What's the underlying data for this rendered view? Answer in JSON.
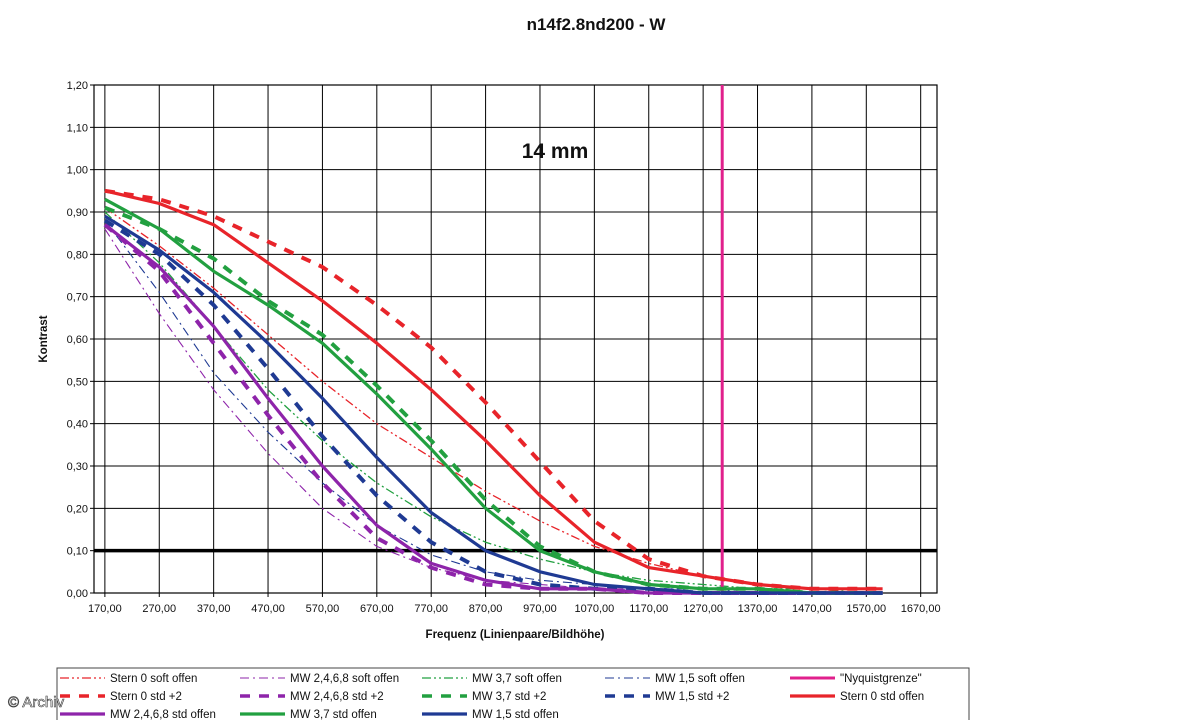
{
  "watermark": "© Archiv",
  "chart_data": {
    "type": "line",
    "title": "n14f2.8nd200 - W",
    "annotation": "14 mm",
    "xlabel": "Frequenz (Linienpaare/Bildhöhe)",
    "ylabel": "Kontrast",
    "xlim": [
      170,
      1700
    ],
    "ylim": [
      0,
      1.2
    ],
    "x_ticks": [
      "170,00",
      "270,00",
      "370,00",
      "470,00",
      "570,00",
      "670,00",
      "770,00",
      "870,00",
      "970,00",
      "1070,00",
      "1170,00",
      "1270,00",
      "1370,00",
      "1470,00",
      "1570,00",
      "1670,00"
    ],
    "y_ticks": [
      "0,00",
      "0,10",
      "0,20",
      "0,30",
      "0,40",
      "0,50",
      "0,60",
      "0,70",
      "0,80",
      "0,90",
      "1,00",
      "1,10",
      "1,20"
    ],
    "grid": true,
    "legend_position": "bottom",
    "reference_lines": [
      {
        "orientation": "horizontal",
        "value": 0.1,
        "color": "#000000"
      },
      {
        "orientation": "vertical",
        "value": 1305,
        "color": "#e0208c",
        "name": "\"Nyquistgrenze\""
      }
    ],
    "series": [
      {
        "name": "Stern 0 soft offen",
        "color": "#e8242a",
        "style": "dashdotdot",
        "width": 1.3,
        "x": [
          170,
          270,
          370,
          470,
          570,
          670,
          770,
          870,
          970,
          1070,
          1170,
          1270,
          1370,
          1470,
          1570,
          1600
        ],
        "y": [
          0.91,
          0.82,
          0.72,
          0.61,
          0.5,
          0.4,
          0.32,
          0.24,
          0.17,
          0.11,
          0.07,
          0.04,
          0.02,
          0.01,
          0.01,
          0.01
        ]
      },
      {
        "name": "MW 2,4,6,8 soft offen",
        "color": "#8e24aa",
        "style": "dashdot",
        "width": 1.1,
        "x": [
          170,
          270,
          370,
          470,
          570,
          670,
          770,
          870,
          970,
          1070,
          1170,
          1270,
          1370,
          1470,
          1570,
          1600
        ],
        "y": [
          0.86,
          0.66,
          0.48,
          0.33,
          0.2,
          0.11,
          0.06,
          0.03,
          0.02,
          0.01,
          0.01,
          0.0,
          0.0,
          0.0,
          0.0,
          0.0
        ]
      },
      {
        "name": "MW 3,7 soft offen",
        "color": "#22a040",
        "style": "dashdotdot",
        "width": 1.3,
        "x": [
          170,
          270,
          370,
          470,
          570,
          670,
          770,
          870,
          970,
          1070,
          1170,
          1270,
          1370,
          1470,
          1570,
          1600
        ],
        "y": [
          0.9,
          0.78,
          0.63,
          0.48,
          0.36,
          0.26,
          0.18,
          0.12,
          0.08,
          0.05,
          0.03,
          0.02,
          0.01,
          0.01,
          0.0,
          0.0
        ]
      },
      {
        "name": "MW 1,5 soft offen",
        "color": "#1f3a93",
        "style": "dashdot",
        "width": 1.1,
        "x": [
          170,
          270,
          370,
          470,
          570,
          670,
          770,
          870,
          970,
          1070,
          1170,
          1270,
          1370,
          1470,
          1570,
          1600
        ],
        "y": [
          0.88,
          0.71,
          0.52,
          0.38,
          0.26,
          0.16,
          0.09,
          0.05,
          0.03,
          0.02,
          0.01,
          0.01,
          0.0,
          0.0,
          0.0,
          0.0
        ]
      },
      {
        "name": "\"Nyquistgrenze\"",
        "color": "#e0208c",
        "style": "solid",
        "width": 3,
        "x": [
          1305,
          1305
        ],
        "y": [
          0,
          1.2
        ]
      },
      {
        "name": "Stern 0 std +2",
        "color": "#e8242a",
        "style": "dashed",
        "width": 4,
        "x": [
          170,
          270,
          370,
          470,
          570,
          670,
          770,
          870,
          970,
          1070,
          1170,
          1270,
          1370,
          1470,
          1570,
          1600
        ],
        "y": [
          0.95,
          0.93,
          0.89,
          0.83,
          0.77,
          0.68,
          0.58,
          0.45,
          0.31,
          0.17,
          0.08,
          0.04,
          0.02,
          0.01,
          0.01,
          0.01
        ]
      },
      {
        "name": "MW 2,4,6,8 std +2",
        "color": "#8e24aa",
        "style": "dashed",
        "width": 4,
        "x": [
          170,
          270,
          370,
          470,
          570,
          670,
          770,
          870,
          970,
          1070,
          1170,
          1270,
          1370,
          1470,
          1570,
          1600
        ],
        "y": [
          0.87,
          0.76,
          0.59,
          0.42,
          0.26,
          0.13,
          0.06,
          0.02,
          0.01,
          0.01,
          0.0,
          0.0,
          0.0,
          0.0,
          0.0,
          0.0
        ]
      },
      {
        "name": "MW 3,7 std +2",
        "color": "#22a040",
        "style": "dashed",
        "width": 4,
        "x": [
          170,
          270,
          370,
          470,
          570,
          670,
          770,
          870,
          970,
          1070,
          1170,
          1270,
          1370,
          1470,
          1570,
          1600
        ],
        "y": [
          0.91,
          0.86,
          0.79,
          0.69,
          0.61,
          0.49,
          0.36,
          0.22,
          0.11,
          0.05,
          0.02,
          0.01,
          0.01,
          0.0,
          0.0,
          0.0
        ]
      },
      {
        "name": "MW 1,5 std +2",
        "color": "#1f3a93",
        "style": "dashed",
        "width": 4,
        "x": [
          170,
          270,
          370,
          470,
          570,
          670,
          770,
          870,
          970,
          1070,
          1170,
          1270,
          1370,
          1470,
          1570,
          1600
        ],
        "y": [
          0.88,
          0.8,
          0.68,
          0.53,
          0.37,
          0.23,
          0.12,
          0.05,
          0.02,
          0.01,
          0.01,
          0.0,
          0.0,
          0.0,
          0.0,
          0.0
        ]
      },
      {
        "name": "Stern 0 std offen",
        "color": "#e8242a",
        "style": "solid",
        "width": 3.2,
        "x": [
          170,
          270,
          370,
          470,
          570,
          670,
          770,
          870,
          970,
          1070,
          1170,
          1270,
          1370,
          1470,
          1570,
          1600
        ],
        "y": [
          0.95,
          0.92,
          0.87,
          0.78,
          0.69,
          0.59,
          0.48,
          0.36,
          0.23,
          0.12,
          0.06,
          0.04,
          0.02,
          0.01,
          0.01,
          0.01
        ]
      },
      {
        "name": "MW 2,4,6,8 std offen",
        "color": "#8e24aa",
        "style": "solid",
        "width": 3.2,
        "x": [
          170,
          270,
          370,
          470,
          570,
          670,
          770,
          870,
          970,
          1070,
          1170,
          1270,
          1370,
          1470,
          1570,
          1600
        ],
        "y": [
          0.87,
          0.77,
          0.63,
          0.46,
          0.3,
          0.16,
          0.07,
          0.03,
          0.01,
          0.01,
          0.0,
          0.0,
          0.0,
          0.0,
          0.0,
          0.0
        ]
      },
      {
        "name": "MW 3,7 std offen",
        "color": "#22a040",
        "style": "solid",
        "width": 3.2,
        "x": [
          170,
          270,
          370,
          470,
          570,
          670,
          770,
          870,
          970,
          1070,
          1170,
          1270,
          1370,
          1470,
          1570,
          1600
        ],
        "y": [
          0.93,
          0.86,
          0.76,
          0.68,
          0.59,
          0.47,
          0.34,
          0.2,
          0.1,
          0.05,
          0.02,
          0.01,
          0.01,
          0.0,
          0.0,
          0.0
        ]
      },
      {
        "name": "MW 1,5 std offen",
        "color": "#1f3a93",
        "style": "solid",
        "width": 3.2,
        "x": [
          170,
          270,
          370,
          470,
          570,
          670,
          770,
          870,
          970,
          1070,
          1170,
          1270,
          1370,
          1470,
          1570,
          1600
        ],
        "y": [
          0.89,
          0.81,
          0.71,
          0.59,
          0.46,
          0.32,
          0.19,
          0.1,
          0.05,
          0.02,
          0.01,
          0.0,
          0.0,
          0.0,
          0.0,
          0.0
        ]
      }
    ]
  }
}
